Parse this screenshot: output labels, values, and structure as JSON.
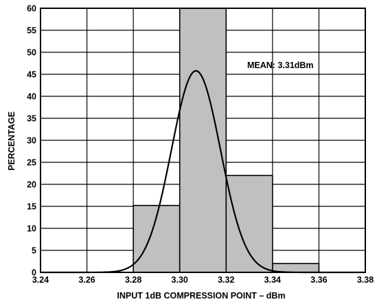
{
  "chart_data": {
    "type": "bar",
    "title": "",
    "xlabel": "INPUT 1dB COMPRESSION POINT – dBm",
    "ylabel": "PERCENTAGE",
    "xlim": [
      3.24,
      3.38
    ],
    "ylim": [
      0,
      60
    ],
    "xticks": [
      "3.24",
      "3.26",
      "3.28",
      "3.30",
      "3.32",
      "3.34",
      "3.36",
      "3.38"
    ],
    "yticks": [
      "0",
      "5",
      "10",
      "15",
      "20",
      "25",
      "30",
      "35",
      "40",
      "45",
      "50",
      "55",
      "60"
    ],
    "grid": true,
    "bins": [
      {
        "from": 3.28,
        "to": 3.3,
        "value": 15.2
      },
      {
        "from": 3.3,
        "to": 3.32,
        "value": 60
      },
      {
        "from": 3.32,
        "to": 3.34,
        "value": 22
      },
      {
        "from": 3.34,
        "to": 3.36,
        "value": 2
      }
    ],
    "fit_curve": {
      "type": "normal",
      "mean": 3.307,
      "sigma": 0.0106,
      "peak": 45.8
    },
    "annotation": "MEAN: 3.31dBm",
    "colors": {
      "bar_fill": "#c0c0c0",
      "bar_stroke": "#000000",
      "grid": "#000000",
      "curve": "#000000"
    }
  }
}
